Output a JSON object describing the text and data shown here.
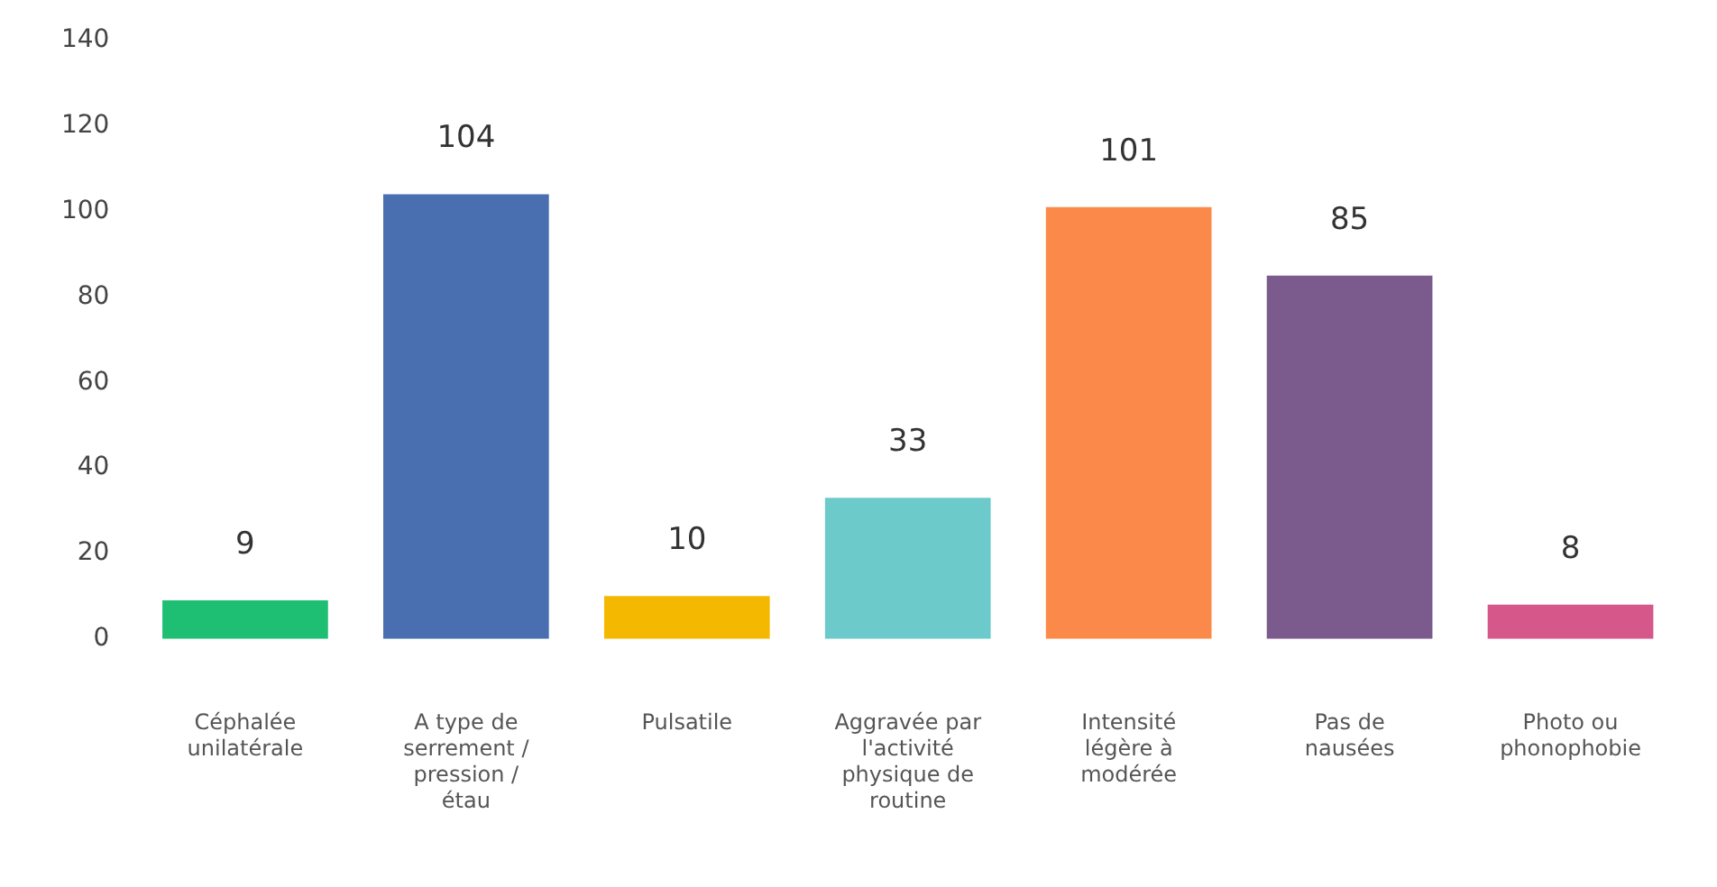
{
  "chart_data": {
    "type": "bar",
    "categories": [
      "Céphalée unilatérale",
      "A type de serrement / pression / étau",
      "Pulsatile",
      "Aggravée par l'activité physique de routine",
      "Intensité légère à modérée",
      "Pas de nausées",
      "Photo ou phonophobie"
    ],
    "values": [
      9,
      104,
      10,
      33,
      101,
      85,
      8
    ],
    "colors": [
      "#1fbf73",
      "#4a6fb0",
      "#f5b800",
      "#6ccaca",
      "#fb8a4a",
      "#7b5b8d",
      "#d6578a"
    ],
    "ylim": [
      0,
      140
    ],
    "yticks": [
      0,
      20,
      40,
      60,
      80,
      100,
      120,
      140
    ],
    "data_labels": true,
    "grid": false,
    "legend": false
  }
}
